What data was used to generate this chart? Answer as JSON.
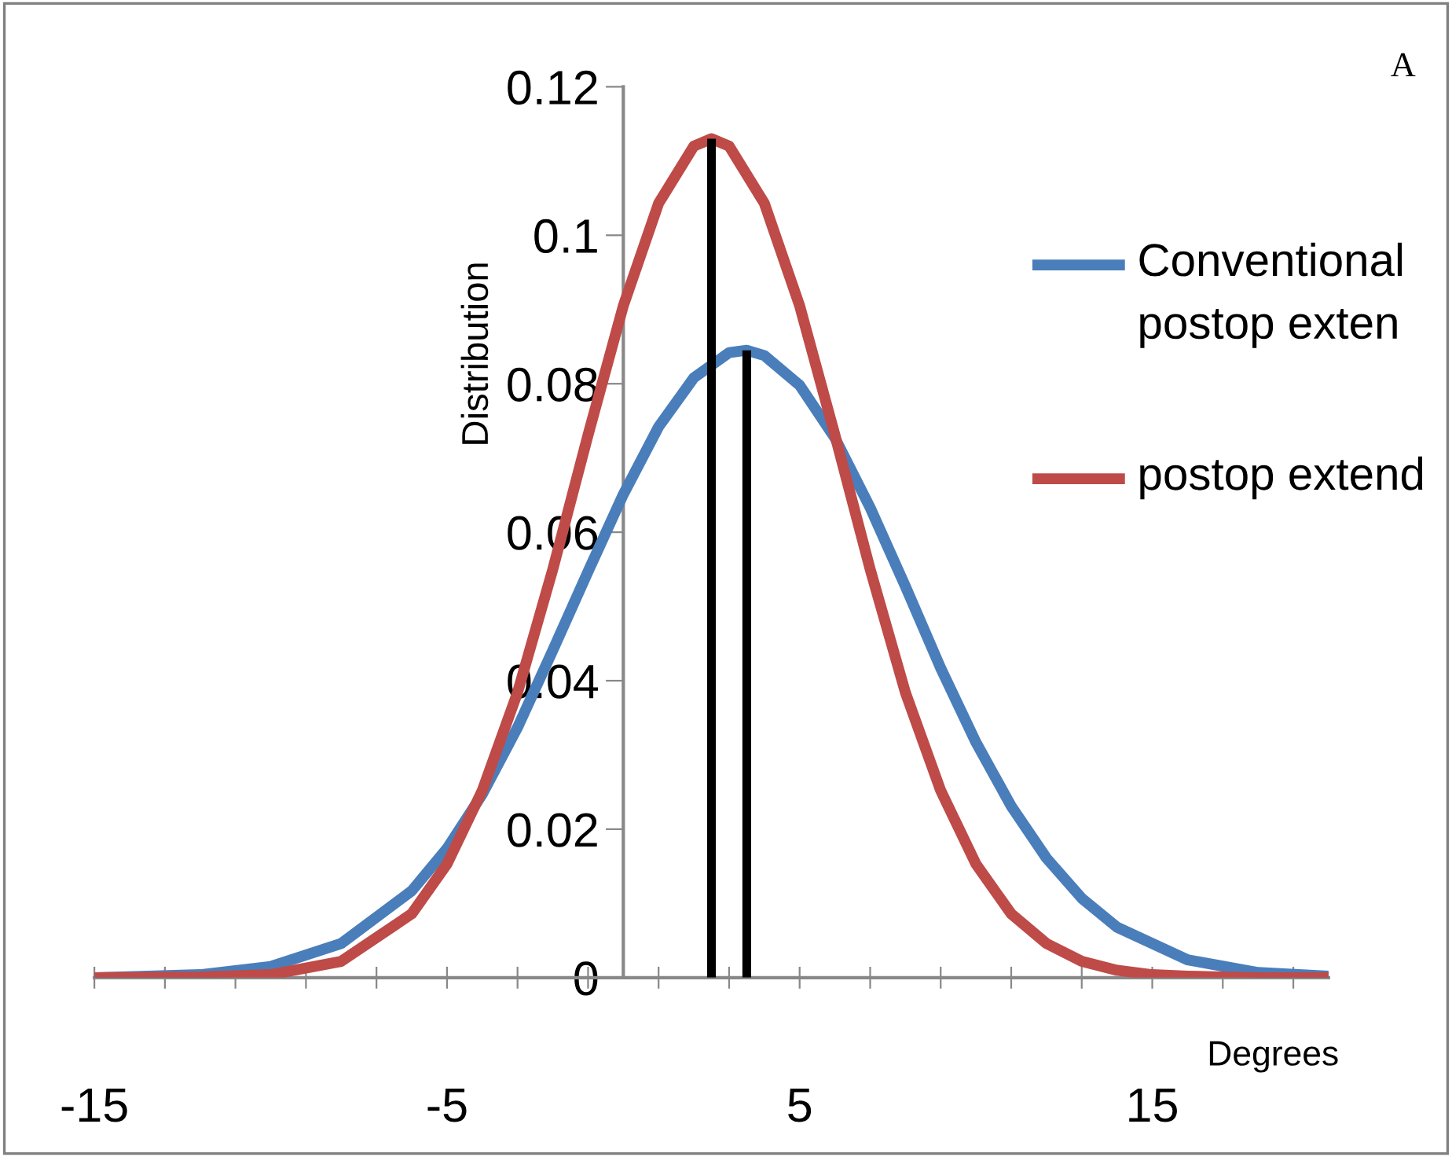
{
  "chart_data": {
    "type": "line",
    "ylabel": "Distribution",
    "xlabel": "Degrees",
    "annotations": [
      "A"
    ],
    "xlim": [
      -15,
      20
    ],
    "ylim": [
      0,
      0.12
    ],
    "xticks": [
      -15,
      {
        "value": -13,
        "label": null
      },
      {
        "value": -11,
        "label": null
      },
      {
        "value": -9,
        "label": null
      },
      {
        "value": -7,
        "label": null
      },
      -5,
      {
        "value": -3,
        "label": null
      },
      {
        "value": -1,
        "label": null
      },
      {
        "value": 1,
        "label": null
      },
      {
        "value": 3,
        "label": null
      },
      5,
      {
        "value": 7,
        "label": null
      },
      {
        "value": 9,
        "label": null
      },
      {
        "value": 11,
        "label": null
      },
      {
        "value": 13,
        "label": null
      },
      15,
      {
        "value": 17,
        "label": null
      },
      {
        "value": 19,
        "label": null
      }
    ],
    "yticks": [
      0,
      0.02,
      0.04,
      0.06,
      0.08,
      0.1,
      0.12
    ],
    "grid": false,
    "legend": "right",
    "marker": "none",
    "line_style": "solid",
    "series": [
      {
        "name": "Conventional postop exten",
        "color": "#4a7ebb",
        "x": [
          -15,
          -12,
          -10,
          -8,
          -6,
          -5,
          -4,
          -3,
          -2,
          -1,
          0,
          1,
          2,
          3,
          3.5,
          4,
          5,
          6,
          7,
          8,
          9,
          10,
          11,
          12,
          13,
          14,
          16,
          18,
          20
        ],
        "values": [
          0.0,
          0.0004,
          0.0015,
          0.0046,
          0.0117,
          0.0174,
          0.0247,
          0.0337,
          0.0441,
          0.0547,
          0.0651,
          0.0742,
          0.0808,
          0.0842,
          0.0845,
          0.0838,
          0.0798,
          0.0727,
          0.0633,
          0.0527,
          0.0417,
          0.0317,
          0.0231,
          0.0161,
          0.0107,
          0.0068,
          0.0024,
          0.0007,
          0.0002
        ]
      },
      {
        "name": "postop extend",
        "color": "#be4b48",
        "x": [
          -15,
          -12,
          -10,
          -8,
          -6,
          -5,
          -4,
          -3,
          -2,
          -1,
          0,
          1,
          2,
          2.5,
          3,
          4,
          5,
          6,
          7,
          8,
          9,
          10,
          11,
          12,
          13,
          14,
          15,
          16,
          18,
          20
        ],
        "values": [
          0.0,
          0.0001,
          0.0004,
          0.0022,
          0.0086,
          0.0153,
          0.0252,
          0.0384,
          0.055,
          0.0731,
          0.0905,
          0.1043,
          0.112,
          0.113,
          0.112,
          0.1043,
          0.0905,
          0.0731,
          0.055,
          0.0384,
          0.0252,
          0.0153,
          0.0086,
          0.0046,
          0.0022,
          0.001,
          0.0004,
          0.0002,
          0.0,
          0.0
        ]
      },
      {
        "color": "#000000",
        "x": [
          2.5,
          2.5
        ],
        "values": [
          0,
          0.113
        ]
      },
      {
        "color": "#000000",
        "x": [
          3.5,
          3.5
        ],
        "values": [
          0,
          0.0845
        ]
      }
    ]
  }
}
